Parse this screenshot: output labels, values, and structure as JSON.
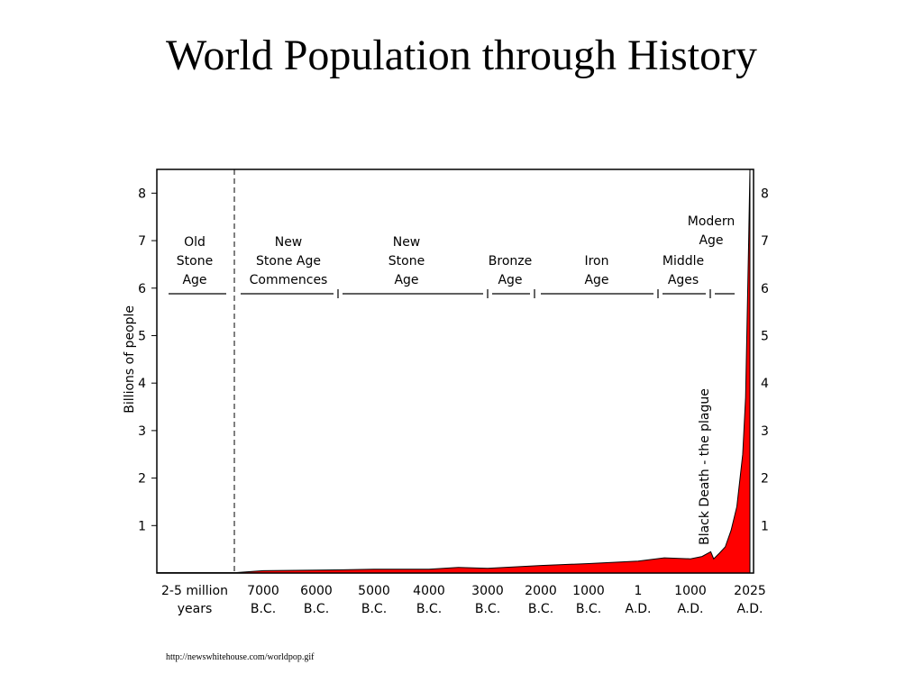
{
  "slide": {
    "title": "World Population through History",
    "source": "http://newswhitehouse.com/worldpop.gif"
  },
  "chart_data": {
    "type": "area",
    "title": "",
    "xlabel": "",
    "ylabel": "Billions of people",
    "ylim": [
      0,
      8.5
    ],
    "yticks": [
      1,
      2,
      3,
      4,
      5,
      6,
      7,
      8
    ],
    "grid": false,
    "fill_color": "#ff0000",
    "x_ticks": [
      {
        "line1": "2-5 million",
        "line2": "years"
      },
      {
        "line1": "7000",
        "line2": "B.C."
      },
      {
        "line1": "6000",
        "line2": "B.C."
      },
      {
        "line1": "5000",
        "line2": "B.C."
      },
      {
        "line1": "4000",
        "line2": "B.C."
      },
      {
        "line1": "3000",
        "line2": "B.C."
      },
      {
        "line1": "2000",
        "line2": "B.C."
      },
      {
        "line1": "1000",
        "line2": "B.C."
      },
      {
        "line1": "1",
        "line2": "A.D."
      },
      {
        "line1": "1000",
        "line2": "A.D."
      },
      {
        "line1": "2025",
        "line2": "A.D."
      }
    ],
    "series": [
      {
        "x": [
          -7500,
          -7000,
          -6000,
          -5000,
          -4000,
          -3500,
          -3000,
          -2000,
          -1000,
          1,
          500,
          1000,
          1200,
          1350,
          1400,
          1500,
          1600,
          1700,
          1800,
          1900,
          1950,
          2000,
          2025
        ],
        "y": [
          0.01,
          0.05,
          0.06,
          0.08,
          0.08,
          0.12,
          0.1,
          0.16,
          0.2,
          0.25,
          0.32,
          0.3,
          0.35,
          0.45,
          0.3,
          0.42,
          0.55,
          0.9,
          1.4,
          2.5,
          3.7,
          6.8,
          8.5
        ]
      }
    ],
    "eras": [
      {
        "lines": [
          "Old",
          "Stone",
          "Age"
        ]
      },
      {
        "lines": [
          "New",
          "Stone Age",
          "Commences"
        ]
      },
      {
        "lines": [
          "New",
          "Stone",
          "Age"
        ]
      },
      {
        "lines": [
          "Bronze",
          "Age"
        ]
      },
      {
        "lines": [
          "Iron",
          "Age"
        ]
      },
      {
        "lines": [
          "Middle",
          "Ages"
        ]
      },
      {
        "lines": [
          "Modern",
          "Age"
        ]
      }
    ],
    "annotations": [
      {
        "text": "Black Death - the plague"
      }
    ]
  }
}
